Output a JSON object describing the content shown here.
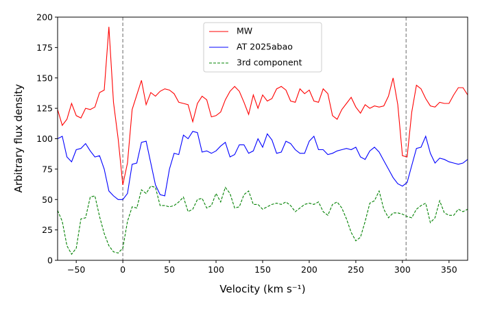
{
  "chart_data": {
    "type": "line",
    "xlabel": "Velocity (km s⁻¹)",
    "ylabel": "Arbitrary flux density",
    "x": [
      -70,
      -65,
      -60,
      -55,
      -50,
      -45,
      -40,
      -35,
      -30,
      -25,
      -20,
      -15,
      -10,
      -5,
      0,
      5,
      10,
      15,
      20,
      25,
      30,
      35,
      40,
      45,
      50,
      55,
      60,
      65,
      70,
      75,
      80,
      85,
      90,
      95,
      100,
      105,
      110,
      115,
      120,
      125,
      130,
      135,
      140,
      145,
      150,
      155,
      160,
      165,
      170,
      175,
      180,
      185,
      190,
      195,
      200,
      205,
      210,
      215,
      220,
      225,
      230,
      235,
      240,
      245,
      250,
      255,
      260,
      265,
      270,
      275,
      280,
      285,
      290,
      295,
      300,
      305,
      310,
      315,
      320,
      325,
      330,
      335,
      340,
      345,
      350,
      355,
      360,
      365,
      370
    ],
    "series": [
      {
        "name": "MW",
        "color": "#ff0000",
        "dash": "solid",
        "values": [
          124,
          111,
          116,
          129,
          119,
          117,
          125,
          124,
          126,
          138,
          140,
          192,
          130,
          100,
          62,
          80,
          124,
          136,
          148,
          128,
          138,
          135,
          139,
          141,
          140,
          137,
          130,
          129,
          128,
          114,
          129,
          135,
          132,
          118,
          119,
          122,
          132,
          139,
          143,
          139,
          130,
          120,
          136,
          125,
          136,
          131,
          133,
          141,
          143,
          140,
          131,
          130,
          141,
          137,
          140,
          131,
          130,
          141,
          137,
          119,
          116,
          124,
          129,
          134,
          126,
          121,
          128,
          125,
          127,
          126,
          127,
          135,
          150,
          128,
          86,
          85,
          122,
          144,
          141,
          133,
          127,
          126,
          130,
          129,
          129,
          136,
          142,
          142,
          136
        ]
      },
      {
        "name": "AT 2025abao",
        "color": "#0000ff",
        "dash": "solid",
        "values": [
          100,
          102,
          85,
          81,
          91,
          92,
          96,
          90,
          85,
          86,
          75,
          57,
          53,
          50,
          50,
          55,
          79,
          80,
          97,
          98,
          80,
          62,
          54,
          53,
          75,
          88,
          87,
          103,
          100,
          106,
          105,
          89,
          90,
          88,
          90,
          94,
          97,
          85,
          87,
          95,
          95,
          88,
          90,
          100,
          93,
          104,
          99,
          88,
          89,
          98,
          96,
          91,
          88,
          88,
          98,
          102,
          91,
          91,
          87,
          88,
          90,
          91,
          92,
          91,
          93,
          85,
          83,
          90,
          93,
          89,
          82,
          75,
          68,
          63,
          61,
          64,
          78,
          92,
          93,
          102,
          88,
          80,
          84,
          83,
          81,
          80,
          79,
          80,
          83
        ]
      },
      {
        "name": "3rd component",
        "color": "#008000",
        "dash": "dashed",
        "values": [
          41,
          32,
          12,
          5,
          10,
          34,
          35,
          52,
          53,
          36,
          22,
          12,
          7,
          6,
          10,
          32,
          44,
          43,
          58,
          55,
          61,
          60,
          45,
          45,
          44,
          45,
          48,
          52,
          40,
          42,
          50,
          51,
          43,
          45,
          55,
          48,
          60,
          55,
          43,
          44,
          54,
          57,
          46,
          46,
          42,
          44,
          46,
          47,
          46,
          48,
          45,
          40,
          43,
          46,
          47,
          46,
          48,
          40,
          37,
          46,
          48,
          43,
          34,
          23,
          16,
          19,
          32,
          47,
          49,
          57,
          42,
          35,
          39,
          39,
          38,
          36,
          35,
          42,
          45,
          47,
          31,
          35,
          49,
          39,
          37,
          37,
          42,
          40,
          42
        ]
      }
    ],
    "vlines": [
      0,
      304
    ],
    "vline_color": "#999999",
    "xlim": [
      -70,
      370
    ],
    "ylim": [
      0,
      200
    ],
    "xticks": [
      {
        "value": -50,
        "label": "−50"
      },
      0,
      50,
      100,
      150,
      200,
      250,
      300,
      350
    ],
    "yticks": [
      0,
      25,
      50,
      75,
      100,
      125,
      150,
      175,
      200
    ],
    "legend": "upper center"
  }
}
